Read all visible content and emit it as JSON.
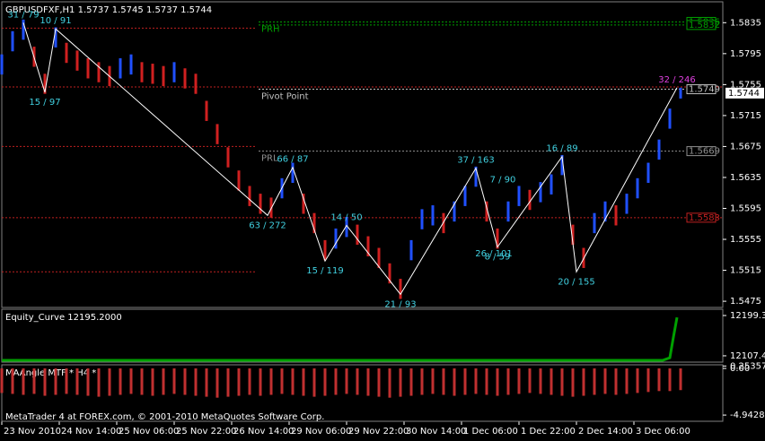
{
  "chart_data": [
    {
      "type": "range-bar",
      "title": "GBPUSDFXF,H1  1.5737 1.5745 1.5737 1.5744",
      "x": [
        0,
        3,
        6,
        9,
        12,
        15,
        18,
        21,
        24,
        27,
        30,
        33,
        36,
        39,
        42,
        45,
        48,
        51,
        54,
        57,
        60,
        63,
        66,
        69,
        72,
        75,
        78,
        81,
        84,
        87,
        90,
        93,
        96,
        99,
        102,
        105,
        108,
        111,
        114,
        117,
        120,
        123,
        126,
        129,
        132,
        135,
        138,
        141,
        144,
        147,
        150,
        153,
        156,
        159,
        162,
        165,
        168,
        171,
        174,
        177,
        180,
        183,
        186,
        189
      ],
      "high": [
        1.5794,
        1.5824,
        1.5839,
        1.5804,
        1.5769,
        1.5829,
        1.5809,
        1.5799,
        1.5789,
        1.5784,
        1.5779,
        1.5789,
        1.5794,
        1.5784,
        1.5782,
        1.5779,
        1.5784,
        1.5776,
        1.5769,
        1.5734,
        1.5704,
        1.5674,
        1.5644,
        1.5624,
        1.5614,
        1.5609,
        1.5634,
        1.5654,
        1.5614,
        1.5589,
        1.5554,
        1.5569,
        1.5584,
        1.5574,
        1.5559,
        1.5544,
        1.5524,
        1.5504,
        1.5554,
        1.5594,
        1.5599,
        1.5589,
        1.5604,
        1.5624,
        1.5649,
        1.5604,
        1.5569,
        1.5604,
        1.5624,
        1.5619,
        1.5629,
        1.5639,
        1.5664,
        1.5574,
        1.5544,
        1.5589,
        1.5604,
        1.5599,
        1.5614,
        1.5634,
        1.5654,
        1.5684,
        1.5724,
        1.5751
      ],
      "low": [
        1.5768,
        1.5798,
        1.5813,
        1.5778,
        1.5743,
        1.5803,
        1.5783,
        1.5773,
        1.5763,
        1.5758,
        1.5753,
        1.5763,
        1.5768,
        1.5758,
        1.5756,
        1.5753,
        1.5758,
        1.575,
        1.5743,
        1.5708,
        1.5678,
        1.5648,
        1.5618,
        1.5598,
        1.5588,
        1.5583,
        1.5608,
        1.5628,
        1.5588,
        1.5563,
        1.5528,
        1.5543,
        1.5558,
        1.5548,
        1.5533,
        1.5518,
        1.5498,
        1.5478,
        1.5528,
        1.5568,
        1.5573,
        1.5563,
        1.5578,
        1.5598,
        1.5623,
        1.5578,
        1.5543,
        1.5578,
        1.5598,
        1.5593,
        1.5603,
        1.5613,
        1.5638,
        1.5548,
        1.5518,
        1.5563,
        1.5578,
        1.5573,
        1.5588,
        1.5608,
        1.5628,
        1.5658,
        1.5698,
        1.5737
      ],
      "up_color": "#2050ff",
      "down_color": "#d02020",
      "xlim": [
        0,
        200.75
      ],
      "xticks": [
        {
          "value": 0,
          "label": "23 Nov 2010"
        },
        {
          "value": 16,
          "label": "24 Nov 14:00"
        },
        {
          "value": 32,
          "label": "25 Nov 06:00"
        },
        {
          "value": 48,
          "label": "25 Nov 22:00"
        },
        {
          "value": 64,
          "label": "26 Nov 14:00"
        },
        {
          "value": 80,
          "label": "29 Nov 06:00"
        },
        {
          "value": 96,
          "label": "29 Nov 22:00"
        },
        {
          "value": 112,
          "label": "30 Nov 14:00"
        },
        {
          "value": 128,
          "label": "1 Dec 06:00"
        },
        {
          "value": 144,
          "label": "1 Dec 22:00"
        },
        {
          "value": 160,
          "label": "2 Dec 14:00"
        },
        {
          "value": 176,
          "label": "3 Dec 06:00"
        }
      ],
      "ylim": [
        1.5467,
        1.5862
      ],
      "yticks": [
        1.5835,
        1.5795,
        1.5755,
        1.5715,
        1.5675,
        1.5635,
        1.5595,
        1.5555,
        1.5515,
        1.5475
      ],
      "last_price": 1.5744,
      "levels": [
        {
          "value": 1.5836,
          "color": "#00a000",
          "label": "PRH",
          "box": true,
          "xrange": [
            71.5,
            190
          ]
        },
        {
          "value": 1.5832,
          "color": "#00a000",
          "box": true,
          "xrange": [
            71.5,
            190
          ]
        },
        {
          "value": 1.5828,
          "color": "#c02020",
          "xrange": [
            0,
            71
          ]
        },
        {
          "value": 1.5752,
          "color": "#c02020",
          "xrange": [
            0,
            200.75
          ]
        },
        {
          "value": 1.5749,
          "color": "#c0c0c0",
          "label": "Pivot Point",
          "box": true,
          "xrange": [
            71.5,
            190
          ]
        },
        {
          "value": 1.5675,
          "color": "#c02020",
          "xrange": [
            0,
            71
          ]
        },
        {
          "value": 1.5669,
          "color": "#909090",
          "label": "PRL",
          "box": true,
          "xrange": [
            71.5,
            190
          ]
        },
        {
          "value": 1.5583,
          "color": "#c02020",
          "box": true,
          "xrange": [
            0,
            200.75
          ]
        },
        {
          "value": 1.5513,
          "color": "#c02020",
          "xrange": [
            0,
            71
          ]
        }
      ],
      "zigzag": {
        "color": "#ffffff",
        "label_color": "#40d0e0",
        "x": [
          6,
          12,
          15,
          74,
          81,
          90,
          96,
          111,
          132,
          138,
          156,
          160,
          188
        ],
        "values": [
          1.5835,
          1.5745,
          1.5827,
          1.5586,
          1.5648,
          1.5527,
          1.5573,
          1.5484,
          1.5647,
          1.5545,
          1.5662,
          1.5513,
          1.5751
        ],
        "labels": [
          "31 / 79",
          "15 / 97",
          "10 / 91",
          "63 / 272",
          "66 / 87",
          "15 / 119",
          "14 / 50",
          "21 / 93",
          "37 / 163",
          "8 / 59",
          "16 / 89",
          "20 / 155",
          "32 / 246"
        ],
        "last_label_color": "#e040e0"
      },
      "extra_labels": {
        "x": [
          139.5,
          137
        ],
        "values": [
          1.5623,
          1.5527
        ],
        "labels": [
          "7 / 90",
          "26 / 101"
        ]
      }
    },
    {
      "type": "line",
      "title": "Equity_Curve 12195.2000",
      "color": "#00a000",
      "x": [
        0,
        184,
        186,
        187,
        188
      ],
      "values": [
        12097,
        12097,
        12103,
        12150,
        12195
      ],
      "ylim": [
        12093,
        12213.7
      ],
      "yticks": [
        12199.38,
        12107.42
      ]
    },
    {
      "type": "bar",
      "title": "MAAngle MTF * H4 *",
      "color": "#c03030",
      "x": [
        0,
        3,
        6,
        9,
        12,
        15,
        18,
        21,
        24,
        27,
        30,
        33,
        36,
        39,
        42,
        45,
        48,
        51,
        54,
        57,
        60,
        63,
        66,
        69,
        72,
        75,
        78,
        81,
        84,
        87,
        90,
        93,
        96,
        99,
        102,
        105,
        108,
        111,
        114,
        117,
        120,
        123,
        126,
        129,
        132,
        135,
        138,
        141,
        144,
        147,
        150,
        153,
        156,
        159,
        162,
        165,
        168,
        171,
        174,
        177,
        180,
        183,
        186,
        189
      ],
      "values": [
        -2.6,
        -2.7,
        -2.8,
        -2.7,
        -2.9,
        -2.8,
        -2.7,
        -2.8,
        -2.9,
        -3.0,
        -2.9,
        -2.8,
        -2.7,
        -2.8,
        -2.9,
        -2.8,
        -2.7,
        -2.8,
        -2.9,
        -3.0,
        -3.1,
        -3.0,
        -2.9,
        -2.8,
        -2.9,
        -2.8,
        -2.7,
        -2.8,
        -2.9,
        -3.0,
        -2.9,
        -2.8,
        -2.7,
        -2.8,
        -2.9,
        -3.0,
        -3.1,
        -3.0,
        -2.9,
        -2.8,
        -2.7,
        -2.8,
        -2.9,
        -2.8,
        -2.7,
        -2.8,
        -2.9,
        -2.8,
        -2.7,
        -2.6,
        -2.7,
        -2.8,
        -2.9,
        -3.0,
        -2.9,
        -2.8,
        -2.7,
        -2.8,
        -2.7,
        -2.6,
        -2.5,
        -2.4,
        -2.4,
        -2.3
      ],
      "ylim": [
        -5.6,
        0.38
      ],
      "yticks": [
        {
          "value": 0,
          "label": "0.00"
        },
        0.253575,
        -4.942875
      ]
    }
  ],
  "footer": "MetaTrader 4 at FOREX.com, © 2001-2010 MetaQuotes Software Corp."
}
